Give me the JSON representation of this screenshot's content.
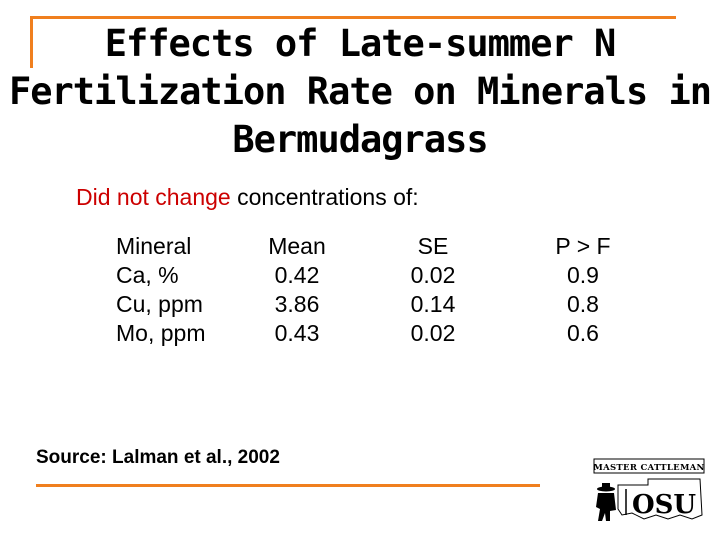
{
  "slide": {
    "title_lines": [
      "Effects of Late-summer N",
      "Fertilization Rate on Minerals in",
      "Bermudagrass"
    ],
    "subtitle_highlight": "Did not change",
    "subtitle_rest": " concentrations of:"
  },
  "table": {
    "headers": [
      "Mineral",
      "Mean",
      "SE",
      "P > F"
    ],
    "rows": [
      [
        "Ca, %",
        "0.42",
        "0.02",
        "0.9"
      ],
      [
        "Cu, ppm",
        "3.86",
        "0.14",
        "0.8"
      ],
      [
        "Mo, ppm",
        "0.43",
        "0.02",
        "0.6"
      ]
    ]
  },
  "source": "Source: Lalman et al., 2002",
  "logo": {
    "top_text": "MASTER CATTLEMAN",
    "main_text": "OSU",
    "icons": [
      "cowboy-silhouette-icon",
      "oklahoma-outline-icon"
    ]
  },
  "colors": {
    "accent": "#f07f1e",
    "highlight": "#cc0000"
  }
}
